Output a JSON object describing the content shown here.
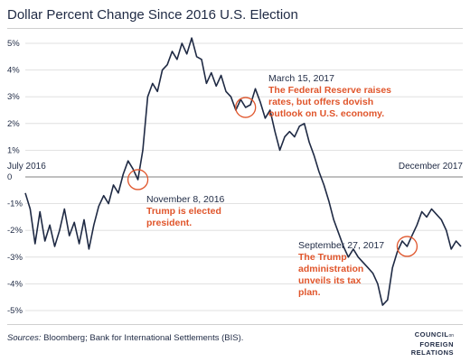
{
  "title": "Dollar Percent Change Since 2016 U.S. Election",
  "source_label": "Sources:",
  "source_text": " Bloomberg; Bank for International Settlements (BIS).",
  "logo": {
    "line1": "COUNCIL",
    "line1_small": "on",
    "line2": "FOREIGN",
    "line3": "RELATIONS"
  },
  "colors": {
    "line": "#1f2a44",
    "accent": "#e0552b",
    "grid": "#d9d9d9"
  },
  "chart_data": {
    "type": "line",
    "title": "Dollar Percent Change Since 2016 U.S. Election",
    "xlabel": "",
    "ylabel": "",
    "x_start_label": "July 2016",
    "x_end_label": "December 2017",
    "yticks": [
      "5%",
      "4%",
      "3%",
      "2%",
      "1%",
      "0",
      "-1%",
      "-2%",
      "-3%",
      "-4%",
      "-5%"
    ],
    "ylim": [
      -5,
      5
    ],
    "grid": true,
    "series": [
      {
        "values": [
          -0.6,
          -1.2,
          -2.5,
          -1.3,
          -2.4,
          -1.8,
          -2.6,
          -2.0,
          -1.2,
          -2.2,
          -1.7,
          -2.5,
          -1.6,
          -2.7,
          -1.8,
          -1.1,
          -0.7,
          -1.0,
          -0.3,
          -0.6,
          0.1,
          0.6,
          0.3,
          -0.1,
          1.0,
          3.0,
          3.5,
          3.2,
          4.0,
          4.2,
          4.7,
          4.4,
          5.0,
          4.6,
          5.2,
          4.5,
          4.4,
          3.5,
          3.9,
          3.4,
          3.8,
          3.2,
          3.0,
          2.5,
          2.9,
          2.6,
          2.7,
          3.3,
          2.8,
          2.2,
          2.5,
          1.7,
          1.0,
          1.5,
          1.7,
          1.5,
          1.9,
          2.0,
          1.3,
          0.8,
          0.2,
          -0.3,
          -0.9,
          -1.6,
          -2.1,
          -2.6,
          -3.0,
          -2.7,
          -3.0,
          -3.2,
          -3.4,
          -3.6,
          -4.0,
          -4.8,
          -4.6,
          -3.4,
          -2.8,
          -2.4,
          -2.6,
          -2.2,
          -1.8,
          -1.3,
          -1.5,
          -1.2,
          -1.4,
          -1.6,
          -2.0,
          -2.7,
          -2.4,
          -2.6
        ]
      }
    ],
    "annotations": [
      {
        "date": "November 8, 2016",
        "text": [
          "Trump is elected",
          "president."
        ],
        "index": 23
      },
      {
        "date": "March 15, 2017",
        "text": [
          "The Federal Reserve raises",
          "rates, but offers dovish",
          "outlook on U.S. economy."
        ],
        "index": 45
      },
      {
        "date": "September 27, 2017",
        "text": [
          "The Trump",
          "administration",
          "unveils its tax",
          "plan."
        ],
        "index": 78
      }
    ]
  }
}
